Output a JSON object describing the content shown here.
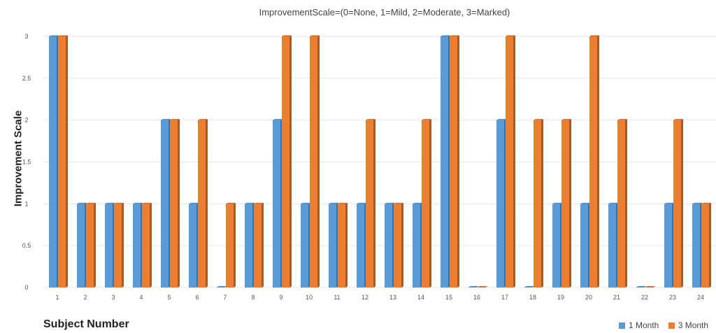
{
  "chart_data": {
    "type": "bar",
    "title": "ImprovementScale=(0=None, 1=Mild, 2=Moderate, 3=Marked)",
    "xlabel": "Subject  Number",
    "ylabel": "Improvement  Scale",
    "categories": [
      "1",
      "2",
      "3",
      "4",
      "5",
      "6",
      "7",
      "8",
      "9",
      "10",
      "11",
      "12",
      "13",
      "14",
      "15",
      "16",
      "17",
      "18",
      "19",
      "20",
      "21",
      "22",
      "23",
      "24"
    ],
    "series": [
      {
        "name": "1 Month",
        "color": "#5b9bd5",
        "values": [
          3,
          1,
          1,
          1,
          2,
          1,
          0,
          1,
          2,
          1,
          1,
          1,
          1,
          1,
          3,
          0,
          2,
          0,
          1,
          1,
          1,
          0,
          1,
          1
        ]
      },
      {
        "name": "3 Month",
        "color": "#ed7d31",
        "values": [
          3,
          1,
          1,
          1,
          2,
          2,
          1,
          1,
          3,
          3,
          1,
          2,
          1,
          2,
          3,
          0,
          3,
          2,
          2,
          3,
          2,
          0,
          2,
          1
        ]
      }
    ],
    "ylim": [
      0,
      3
    ],
    "yticks": [
      "0",
      "0.5",
      "1",
      "1.5",
      "2",
      "2.5",
      "3"
    ],
    "grid": true,
    "legend_position": "bottom-right"
  }
}
